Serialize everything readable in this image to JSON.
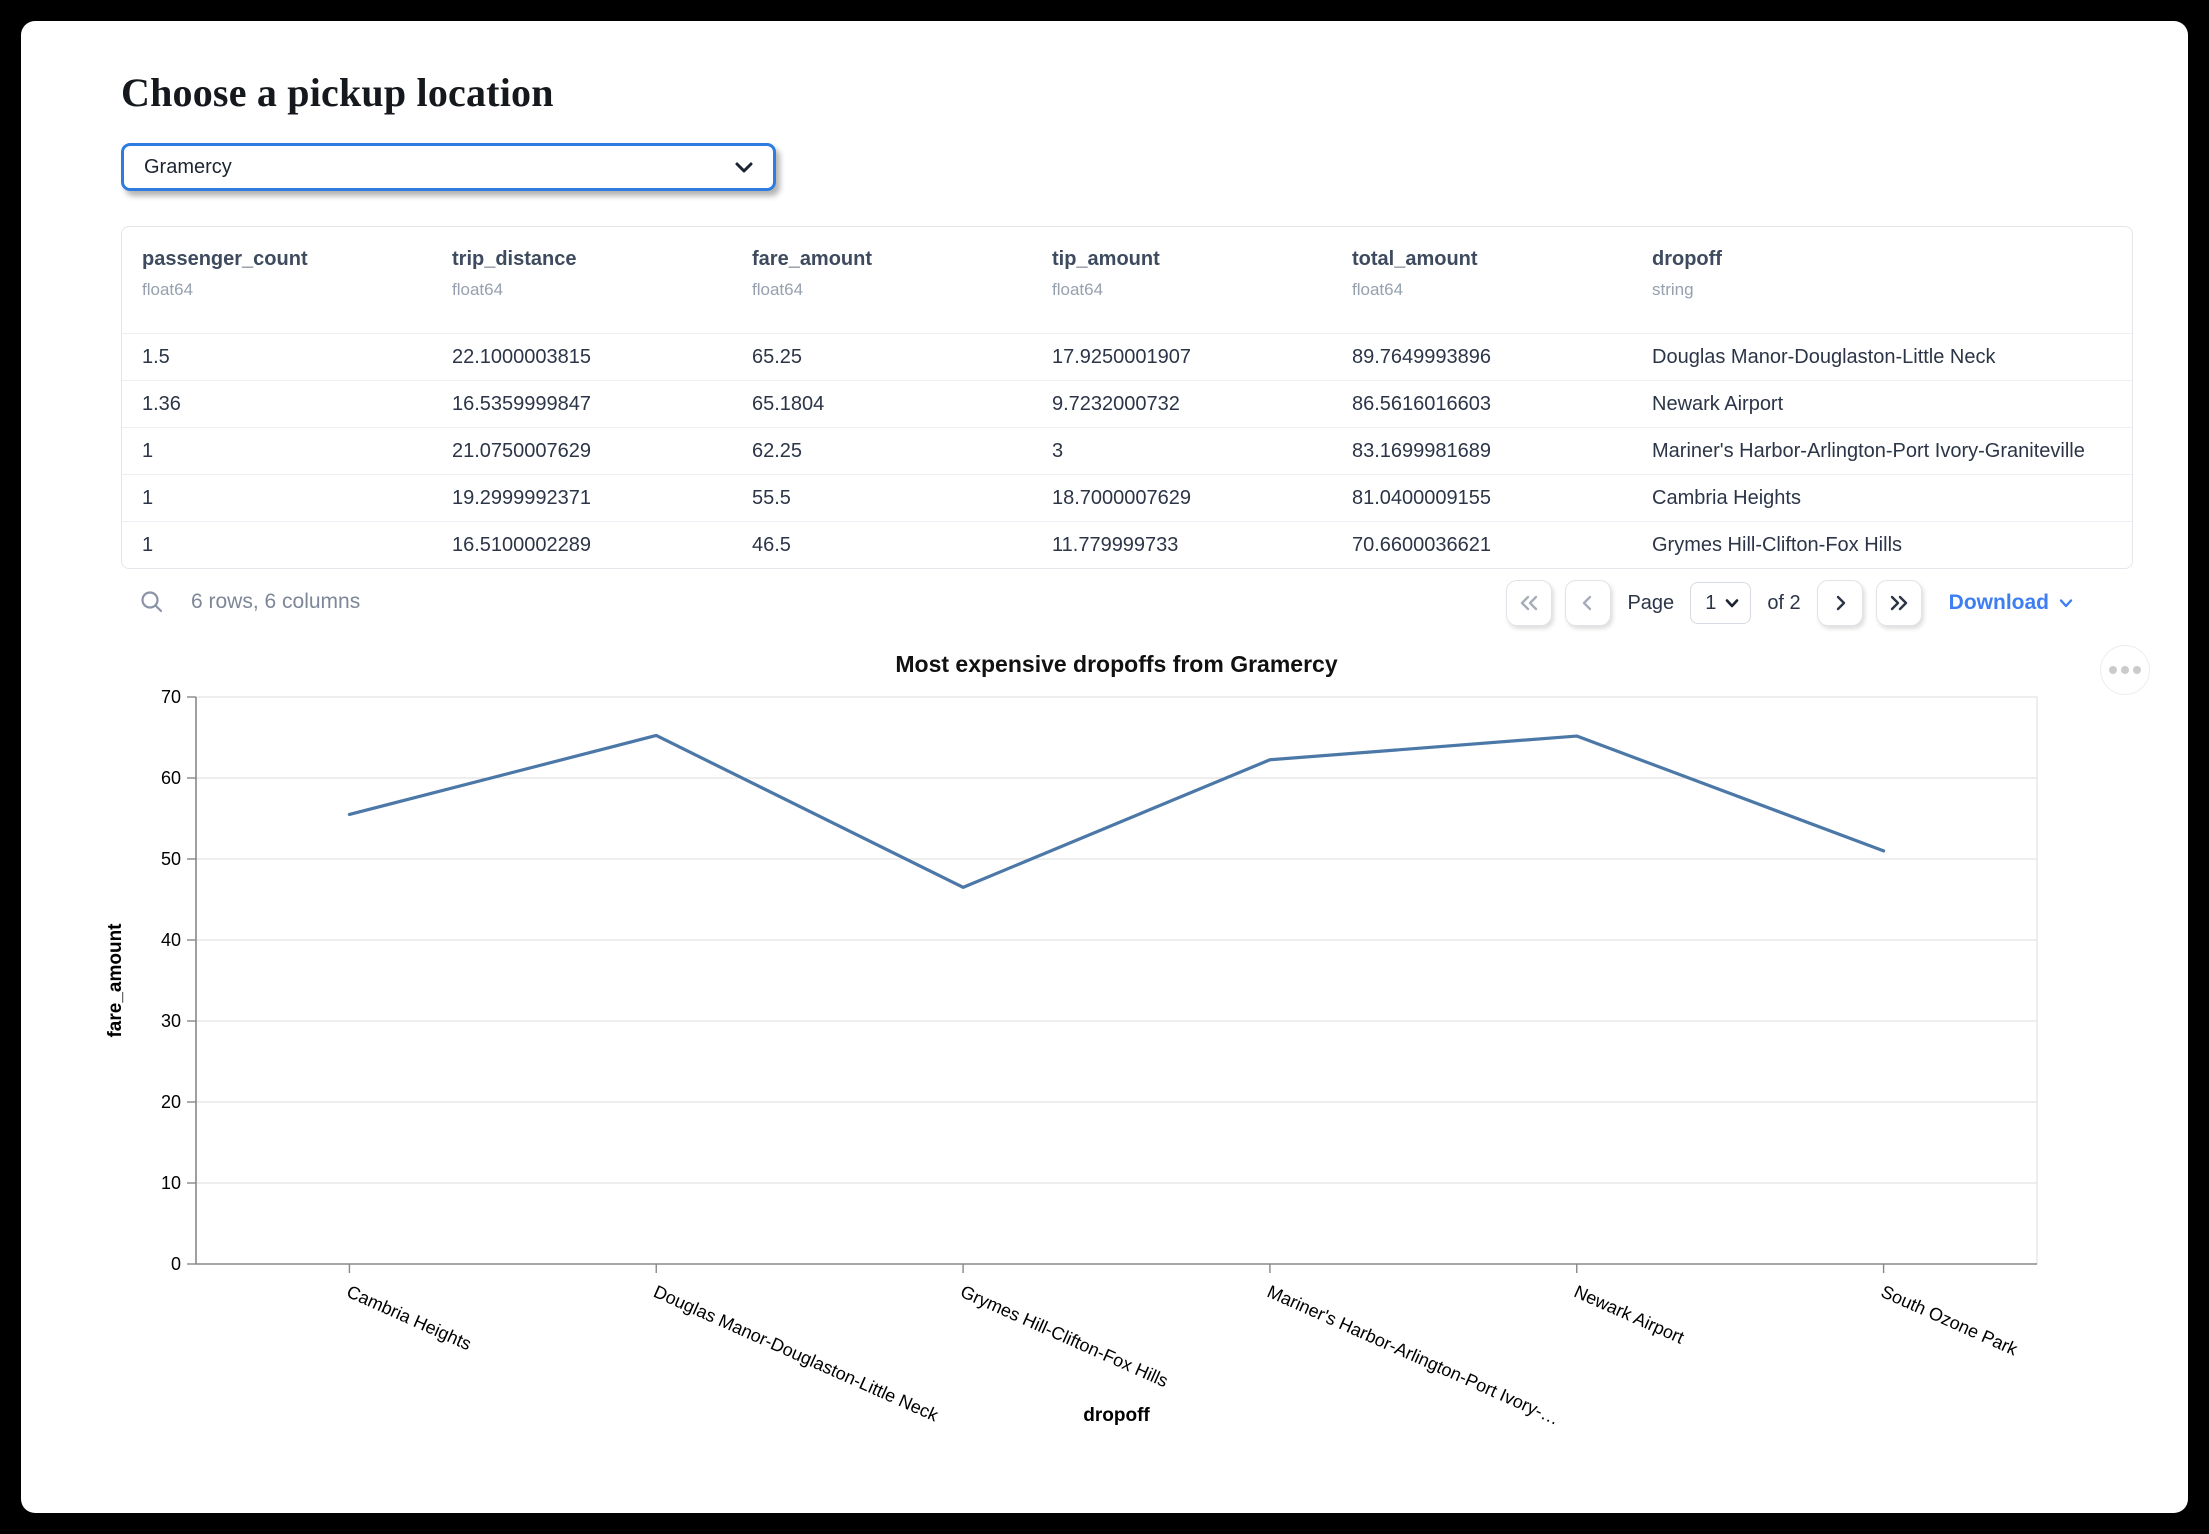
{
  "page": {
    "title": "Choose a pickup location"
  },
  "pickup_select": {
    "value": "Gramercy"
  },
  "table": {
    "columns": [
      {
        "name": "passenger_count",
        "type": "float64"
      },
      {
        "name": "trip_distance",
        "type": "float64"
      },
      {
        "name": "fare_amount",
        "type": "float64"
      },
      {
        "name": "tip_amount",
        "type": "float64"
      },
      {
        "name": "total_amount",
        "type": "float64"
      },
      {
        "name": "dropoff",
        "type": "string"
      }
    ],
    "rows": [
      [
        "1.5",
        "22.1000003815",
        "65.25",
        "17.9250001907",
        "89.7649993896",
        "Douglas Manor-Douglaston-Little Neck"
      ],
      [
        "1.36",
        "16.5359999847",
        "65.1804",
        "9.7232000732",
        "86.5616016603",
        "Newark Airport"
      ],
      [
        "1",
        "21.0750007629",
        "62.25",
        "3",
        "83.1699981689",
        "Mariner's Harbor-Arlington-Port Ivory-Graniteville"
      ],
      [
        "1",
        "19.2999992371",
        "55.5",
        "18.7000007629",
        "81.0400009155",
        "Cambria Heights"
      ],
      [
        "1",
        "16.5100002289",
        "46.5",
        "11.779999733",
        "70.6600036621",
        "Grymes Hill-Clifton-Fox Hills"
      ]
    ],
    "footer": {
      "summary": "6 rows, 6 columns",
      "page_label": "Page",
      "page_value": "1",
      "of_label": "of 2",
      "download_label": "Download"
    }
  },
  "chart_data": {
    "type": "line",
    "title": "Most expensive dropoffs from Gramercy",
    "xlabel": "dropoff",
    "ylabel": "fare_amount",
    "categories": [
      "Cambria Heights",
      "Douglas Manor-Douglaston-Little Neck",
      "Grymes Hill-Clifton-Fox Hills",
      "Mariner's Harbor-Arlington-Port Ivory-…",
      "Newark Airport",
      "South Ozone Park"
    ],
    "values": [
      55.5,
      65.25,
      46.5,
      62.25,
      65.1804,
      51
    ],
    "ylim": [
      0,
      70
    ],
    "yticks": [
      0,
      10,
      20,
      30,
      40,
      50,
      60,
      70
    ],
    "grid": true,
    "legend": "none",
    "x_label_angle_deg": 24,
    "line_color": "#4c78a8"
  },
  "colors": {
    "select_focus_border": "#2e7ce0",
    "link_blue": "#3d7ff2",
    "chart_line": "#4c78a8",
    "header_text": "#3e4a5e",
    "muted_text": "#97a0ae"
  }
}
